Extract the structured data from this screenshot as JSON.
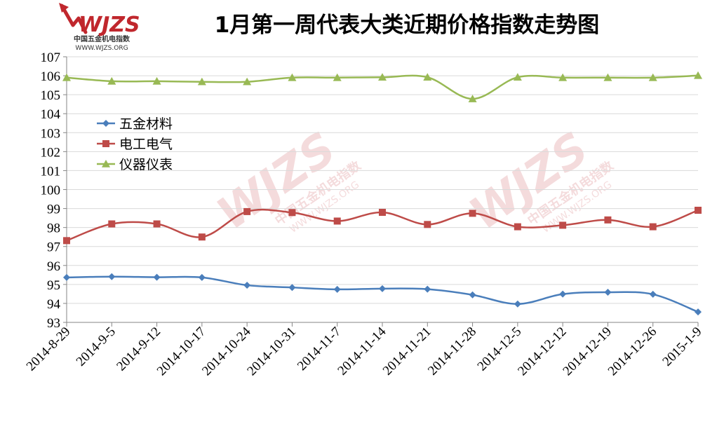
{
  "logo": {
    "mark": "WJZS",
    "cn": "中国五金机电指数",
    "url": "WWW.WJZS.ORG",
    "color": "#c0272d"
  },
  "watermark": {
    "mark": "WJZS",
    "cn": "中国五金机电指数",
    "url": "WWW.WJZS.ORG"
  },
  "chart_data": {
    "type": "line",
    "title": "1月第一周代表大类近期价格指数走势图",
    "xlabel": "",
    "ylabel": "",
    "ylim": [
      93,
      107
    ],
    "y_ticks": [
      93,
      94,
      95,
      96,
      97,
      98,
      99,
      100,
      101,
      102,
      103,
      104,
      105,
      106,
      107
    ],
    "grid": true,
    "legend_position": "left",
    "categories": [
      "2014-8-29",
      "2014-9-5",
      "2014-9-12",
      "2014-10-17",
      "2014-10-24",
      "2014-10-31",
      "2014-11-7",
      "2014-11-14",
      "2014-11-21",
      "2014-11-28",
      "2014-12-5",
      "2014-12-12",
      "2014-12-19",
      "2014-12-26",
      "2015-1-9"
    ],
    "series": [
      {
        "name": "五金材料",
        "color": "#4a7ebb",
        "marker": "diamond",
        "values": [
          95.37,
          95.41,
          95.38,
          95.37,
          94.96,
          94.84,
          94.74,
          94.78,
          94.75,
          94.45,
          93.97,
          94.49,
          94.59,
          94.48,
          93.55
        ]
      },
      {
        "name": "电工电气",
        "color": "#be4b48",
        "marker": "square",
        "values": [
          97.31,
          98.19,
          98.19,
          97.5,
          98.84,
          98.79,
          98.34,
          98.8,
          98.16,
          98.75,
          98.04,
          98.12,
          98.4,
          98.04,
          98.91
        ]
      },
      {
        "name": "仪器仪表",
        "color": "#98b954",
        "marker": "triangle",
        "values": [
          105.9,
          105.71,
          105.71,
          105.68,
          105.68,
          105.9,
          105.9,
          105.92,
          105.92,
          104.78,
          105.92,
          105.9,
          105.9,
          105.9,
          106.01
        ]
      }
    ]
  }
}
